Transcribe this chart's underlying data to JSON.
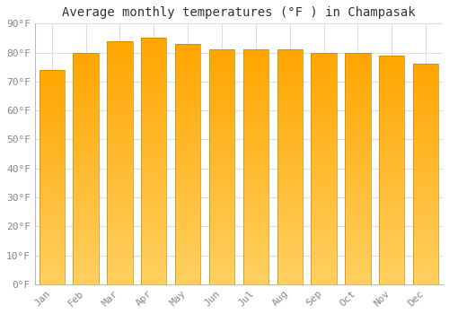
{
  "months": [
    "Jan",
    "Feb",
    "Mar",
    "Apr",
    "May",
    "Jun",
    "Jul",
    "Aug",
    "Sep",
    "Oct",
    "Nov",
    "Dec"
  ],
  "values": [
    74,
    80,
    84,
    85,
    83,
    81,
    81,
    81,
    80,
    80,
    79,
    76
  ],
  "bar_color_top": "#FFA500",
  "bar_color_bottom": "#FFD060",
  "title": "Average monthly temperatures (°F ) in Champasak",
  "ylim": [
    0,
    90
  ],
  "yticks": [
    0,
    10,
    20,
    30,
    40,
    50,
    60,
    70,
    80,
    90
  ],
  "ytick_labels": [
    "0°F",
    "10°F",
    "20°F",
    "30°F",
    "40°F",
    "50°F",
    "60°F",
    "70°F",
    "80°F",
    "90°F"
  ],
  "background_color": "#FFFFFF",
  "grid_color": "#DDDDDD",
  "title_fontsize": 10,
  "tick_fontsize": 8,
  "bar_edge_color": "#CC8800"
}
